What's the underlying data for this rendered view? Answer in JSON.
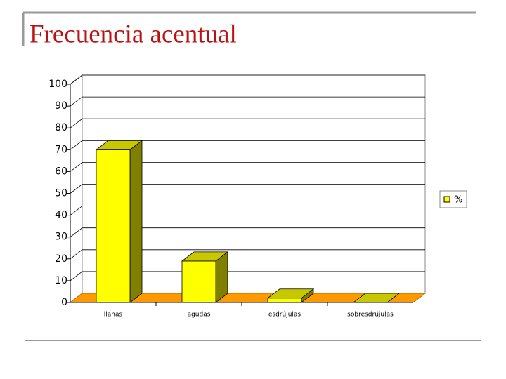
{
  "chart_data": {
    "type": "bar3d",
    "title": "Frecuencia acentual",
    "categories": [
      "llanas",
      "agudas",
      "esdrújulas",
      "sobresdrújulas"
    ],
    "series": [
      {
        "name": "%",
        "color": "#ffff00",
        "values": [
          70,
          19,
          2,
          0
        ]
      }
    ],
    "ylim": [
      0,
      100
    ],
    "yticks": [
      0,
      10,
      20,
      30,
      40,
      50,
      60,
      70,
      80,
      90,
      100
    ],
    "grid": true,
    "legend": "right"
  }
}
